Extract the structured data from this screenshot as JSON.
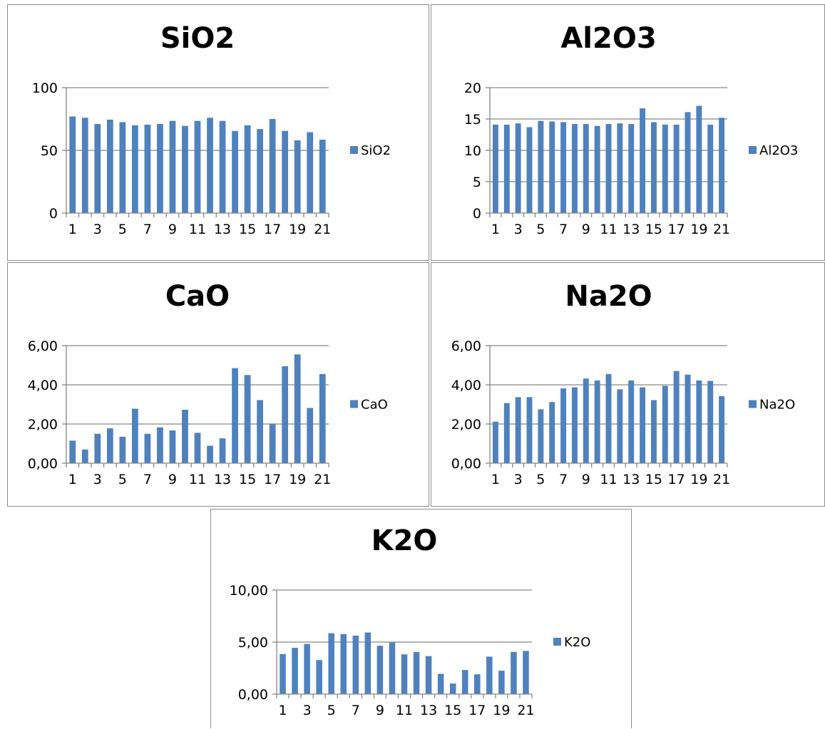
{
  "colors": {
    "bar": "#4f81bd",
    "grid": "#868686",
    "axis": "#868686",
    "text": "#000000"
  },
  "chart_data": [
    {
      "type": "bar",
      "title": "SiO2",
      "series_name": "SiO2",
      "categories": [
        1,
        2,
        3,
        4,
        5,
        6,
        7,
        8,
        9,
        10,
        11,
        12,
        13,
        14,
        15,
        16,
        17,
        18,
        19,
        20,
        21
      ],
      "tick_labels": [
        "1",
        "3",
        "5",
        "7",
        "9",
        "11",
        "13",
        "15",
        "17",
        "19",
        "21"
      ],
      "values": [
        77,
        76,
        71,
        74.5,
        72.5,
        70,
        70.5,
        71,
        73.5,
        69.5,
        73.5,
        76,
        73.5,
        65.5,
        70,
        67,
        75,
        65.5,
        58,
        64.5,
        58.5
      ],
      "ylim": [
        0,
        100
      ],
      "yticks": [
        "0",
        "50",
        "100"
      ],
      "legend": "right"
    },
    {
      "type": "bar",
      "title": "Al2O3",
      "series_name": "Al2O3",
      "categories": [
        1,
        2,
        3,
        4,
        5,
        6,
        7,
        8,
        9,
        10,
        11,
        12,
        13,
        14,
        15,
        16,
        17,
        18,
        19,
        20,
        21
      ],
      "tick_labels": [
        "1",
        "3",
        "5",
        "7",
        "9",
        "11",
        "13",
        "15",
        "17",
        "19",
        "21"
      ],
      "values": [
        14.1,
        14.1,
        14.3,
        13.7,
        14.7,
        14.6,
        14.5,
        14.2,
        14.2,
        13.9,
        14.2,
        14.3,
        14.2,
        16.7,
        14.5,
        14.1,
        14.1,
        16.1,
        17.1,
        14.1,
        15.2
      ],
      "ylim": [
        0,
        20
      ],
      "yticks": [
        "0",
        "5",
        "10",
        "15",
        "20"
      ],
      "legend": "right"
    },
    {
      "type": "bar",
      "title": "CaO",
      "series_name": "CaO",
      "categories": [
        1,
        2,
        3,
        4,
        5,
        6,
        7,
        8,
        9,
        10,
        11,
        12,
        13,
        14,
        15,
        16,
        17,
        18,
        19,
        20,
        21
      ],
      "tick_labels": [
        "1",
        "3",
        "5",
        "7",
        "9",
        "11",
        "13",
        "15",
        "17",
        "19",
        "21"
      ],
      "values": [
        1.15,
        0.7,
        1.5,
        1.78,
        1.35,
        2.78,
        1.5,
        1.83,
        1.67,
        2.73,
        1.55,
        0.89,
        1.27,
        4.85,
        4.5,
        3.22,
        2.02,
        4.95,
        5.55,
        2.82,
        4.55
      ],
      "ylim": [
        0,
        6
      ],
      "yticks": [
        "0,00",
        "2,00",
        "4,00",
        "6,00"
      ],
      "legend": "right"
    },
    {
      "type": "bar",
      "title": "Na2O",
      "series_name": "Na2O",
      "categories": [
        1,
        2,
        3,
        4,
        5,
        6,
        7,
        8,
        9,
        10,
        11,
        12,
        13,
        14,
        15,
        16,
        17,
        18,
        19,
        20,
        21
      ],
      "tick_labels": [
        "1",
        "3",
        "5",
        "7",
        "9",
        "11",
        "13",
        "15",
        "17",
        "19",
        "21"
      ],
      "values": [
        2.12,
        3.07,
        3.37,
        3.37,
        2.75,
        3.12,
        3.82,
        3.87,
        4.32,
        4.22,
        4.55,
        3.77,
        4.22,
        3.87,
        3.22,
        3.95,
        4.7,
        4.52,
        4.22,
        4.2,
        3.42
      ],
      "ylim": [
        0,
        6
      ],
      "yticks": [
        "0,00",
        "2,00",
        "4,00",
        "6,00"
      ],
      "legend": "right"
    },
    {
      "type": "bar",
      "title": "K2O",
      "series_name": "K2O",
      "categories": [
        1,
        2,
        3,
        4,
        5,
        6,
        7,
        8,
        9,
        10,
        11,
        12,
        13,
        14,
        15,
        16,
        17,
        18,
        19,
        20,
        21
      ],
      "tick_labels": [
        "1",
        "3",
        "5",
        "7",
        "9",
        "11",
        "13",
        "15",
        "17",
        "19",
        "21"
      ],
      "values": [
        3.85,
        4.45,
        4.82,
        3.27,
        5.85,
        5.77,
        5.62,
        5.92,
        4.65,
        4.95,
        3.82,
        4.05,
        3.65,
        1.95,
        1.02,
        2.32,
        1.9,
        3.6,
        2.25,
        4.05,
        4.15
      ],
      "ylim": [
        0,
        10
      ],
      "yticks": [
        "0,00",
        "5,00",
        "10,00"
      ],
      "legend": "right"
    }
  ]
}
